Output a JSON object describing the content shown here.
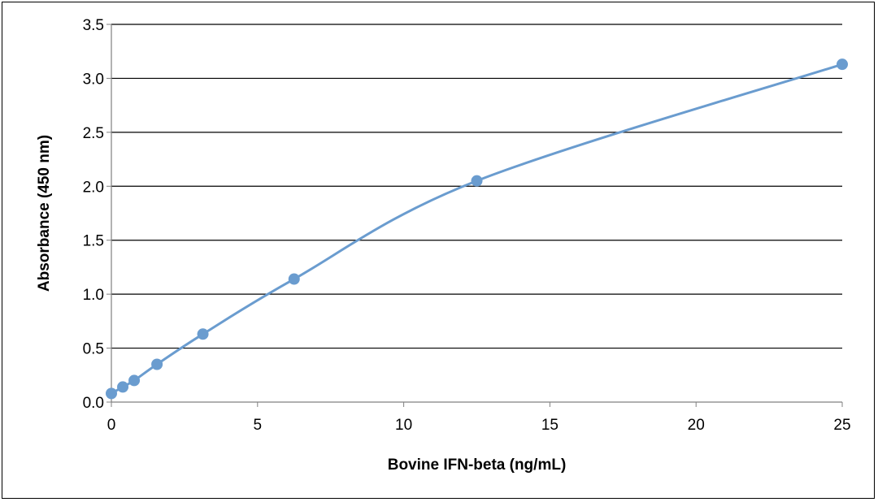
{
  "chart_data": {
    "type": "scatter",
    "title": "",
    "xlabel": "Bovine IFN-beta (ng/mL)",
    "ylabel": "Absorbance (450 nm)",
    "xlim": [
      0,
      25
    ],
    "ylim": [
      0,
      3.5
    ],
    "x_ticks": [
      "0",
      "5",
      "10",
      "15",
      "20",
      "25"
    ],
    "y_ticks": [
      "0.0",
      "0.5",
      "1.0",
      "1.5",
      "2.0",
      "2.5",
      "3.0",
      "3.5"
    ],
    "grid": "horizontal",
    "legend": "none",
    "smooth_line": true,
    "series": [
      {
        "x": [
          0,
          0.39,
          0.78,
          1.56,
          3.13,
          6.25,
          12.5,
          25
        ],
        "y": [
          0.08,
          0.14,
          0.2,
          0.35,
          0.63,
          1.14,
          2.05,
          3.13
        ]
      }
    ],
    "colors": {
      "series": "#6a9ccf",
      "grid": "#000000",
      "axis": "#808080"
    }
  }
}
